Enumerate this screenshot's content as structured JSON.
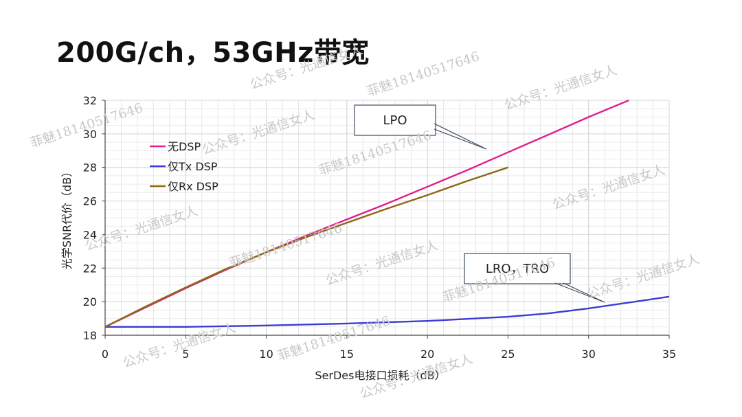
{
  "slide": {
    "title": "200G/ch，53GHz带宽"
  },
  "watermarks": [
    {
      "text": "公众号：光通信女人"
    },
    {
      "text": "菲魅18140517646"
    },
    {
      "text": "公众号：光通信女人"
    },
    {
      "text": "菲魅18140517646"
    },
    {
      "text": "公众号：光通信女人"
    },
    {
      "text": "菲魅18140517646"
    },
    {
      "text": "公众号：光通信女人"
    },
    {
      "text": "公众号：光通信女人"
    },
    {
      "text": "菲魅18140517646"
    },
    {
      "text": "公众号：光通信女人"
    },
    {
      "text": "菲魅18140517646"
    },
    {
      "text": "公众号：光通信女人"
    },
    {
      "text": "公众号：光通信女人"
    },
    {
      "text": "菲魅18140517646"
    },
    {
      "text": "公众号：光通信女人"
    }
  ],
  "chart_data": {
    "type": "line",
    "xlabel": "SerDes电接口损耗（dB）",
    "ylabel": "光学SNR代价（dB）",
    "xlim": [
      0,
      35
    ],
    "ylim": [
      18,
      32
    ],
    "xticks": [
      0,
      5,
      10,
      15,
      20,
      25,
      30,
      35
    ],
    "yticks": [
      18,
      20,
      22,
      24,
      26,
      28,
      30,
      32
    ],
    "grid": true,
    "legend_position": "top-left",
    "series": [
      {
        "name": "无DSP",
        "color": "#e0208c",
        "points": [
          [
            0,
            18.5
          ],
          [
            2.5,
            19.65
          ],
          [
            5,
            20.8
          ],
          [
            7.5,
            21.9
          ],
          [
            10,
            22.95
          ],
          [
            12.5,
            23.95
          ],
          [
            15,
            24.9
          ],
          [
            17.5,
            25.85
          ],
          [
            20,
            26.85
          ],
          [
            22.5,
            27.85
          ],
          [
            25,
            28.9
          ],
          [
            27.5,
            29.95
          ],
          [
            30,
            31.0
          ],
          [
            32.5,
            32.0
          ]
        ]
      },
      {
        "name": "仅Tx DSP",
        "color": "#3b3bd6",
        "points": [
          [
            0,
            18.5
          ],
          [
            5,
            18.5
          ],
          [
            10,
            18.58
          ],
          [
            15,
            18.7
          ],
          [
            20,
            18.85
          ],
          [
            25,
            19.1
          ],
          [
            27.5,
            19.3
          ],
          [
            30,
            19.6
          ],
          [
            32.5,
            19.95
          ],
          [
            35,
            20.3
          ]
        ]
      },
      {
        "name": "仅Rx DSP",
        "color": "#8b6914",
        "points": [
          [
            0,
            18.5
          ],
          [
            2.5,
            19.7
          ],
          [
            5,
            20.85
          ],
          [
            7.5,
            21.95
          ],
          [
            10,
            22.95
          ],
          [
            12.5,
            23.85
          ],
          [
            15,
            24.7
          ],
          [
            17.5,
            25.55
          ],
          [
            20,
            26.35
          ],
          [
            22.5,
            27.2
          ],
          [
            25,
            28.0
          ]
        ]
      }
    ],
    "annotations": [
      {
        "text": "LPO",
        "target": [
          23.5,
          28.6
        ]
      },
      {
        "text": "LRO，TRO",
        "target": [
          31,
          20.0
        ]
      }
    ]
  }
}
